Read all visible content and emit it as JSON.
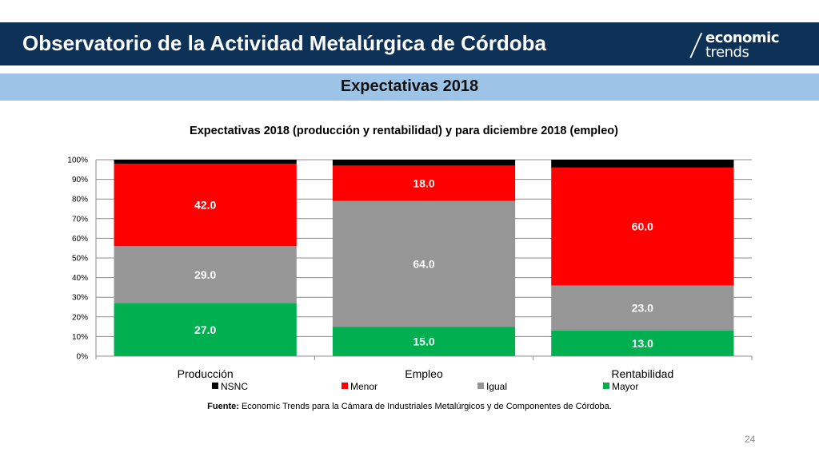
{
  "header": {
    "title": "Observatorio de la Actividad Metalúrgica de Córdoba"
  },
  "logo": {
    "line1": "economic",
    "line2": "trends",
    "slash": "/"
  },
  "section": {
    "title": "Expectativas 2018"
  },
  "chart_data": {
    "type": "bar",
    "stacked": true,
    "percent": true,
    "title": "Expectativas 2018 (producción y rentabilidad) y para diciembre 2018 (empleo)",
    "categories": [
      "Producción",
      "Empleo",
      "Rentabilidad"
    ],
    "series": [
      {
        "name": "Mayor",
        "values": [
          27.0,
          15.0,
          13.0
        ],
        "color": "#00b050",
        "show_labels": true
      },
      {
        "name": "Igual",
        "values": [
          29.0,
          64.0,
          23.0
        ],
        "color": "#969696",
        "show_labels": true
      },
      {
        "name": "Menor",
        "values": [
          42.0,
          18.0,
          60.0
        ],
        "color": "#ff0000",
        "show_labels": true
      },
      {
        "name": "NSNC",
        "values": [
          2.0,
          3.0,
          4.0
        ],
        "color": "#000000",
        "show_labels": false
      }
    ],
    "legend_order": [
      "NSNC",
      "Menor",
      "Igual",
      "Mayor"
    ],
    "ylim": [
      0,
      100
    ],
    "yticks": [
      "0%",
      "10%",
      "20%",
      "30%",
      "40%",
      "50%",
      "60%",
      "70%",
      "80%",
      "90%",
      "100%"
    ],
    "grid": true,
    "legend_position": "bottom"
  },
  "footer": {
    "source_label": "Fuente:",
    "source_text": " Economic Trends para la Cámara de Industriales Metalúrgicos y de Componentes de Córdoba.",
    "page_number": "24"
  }
}
